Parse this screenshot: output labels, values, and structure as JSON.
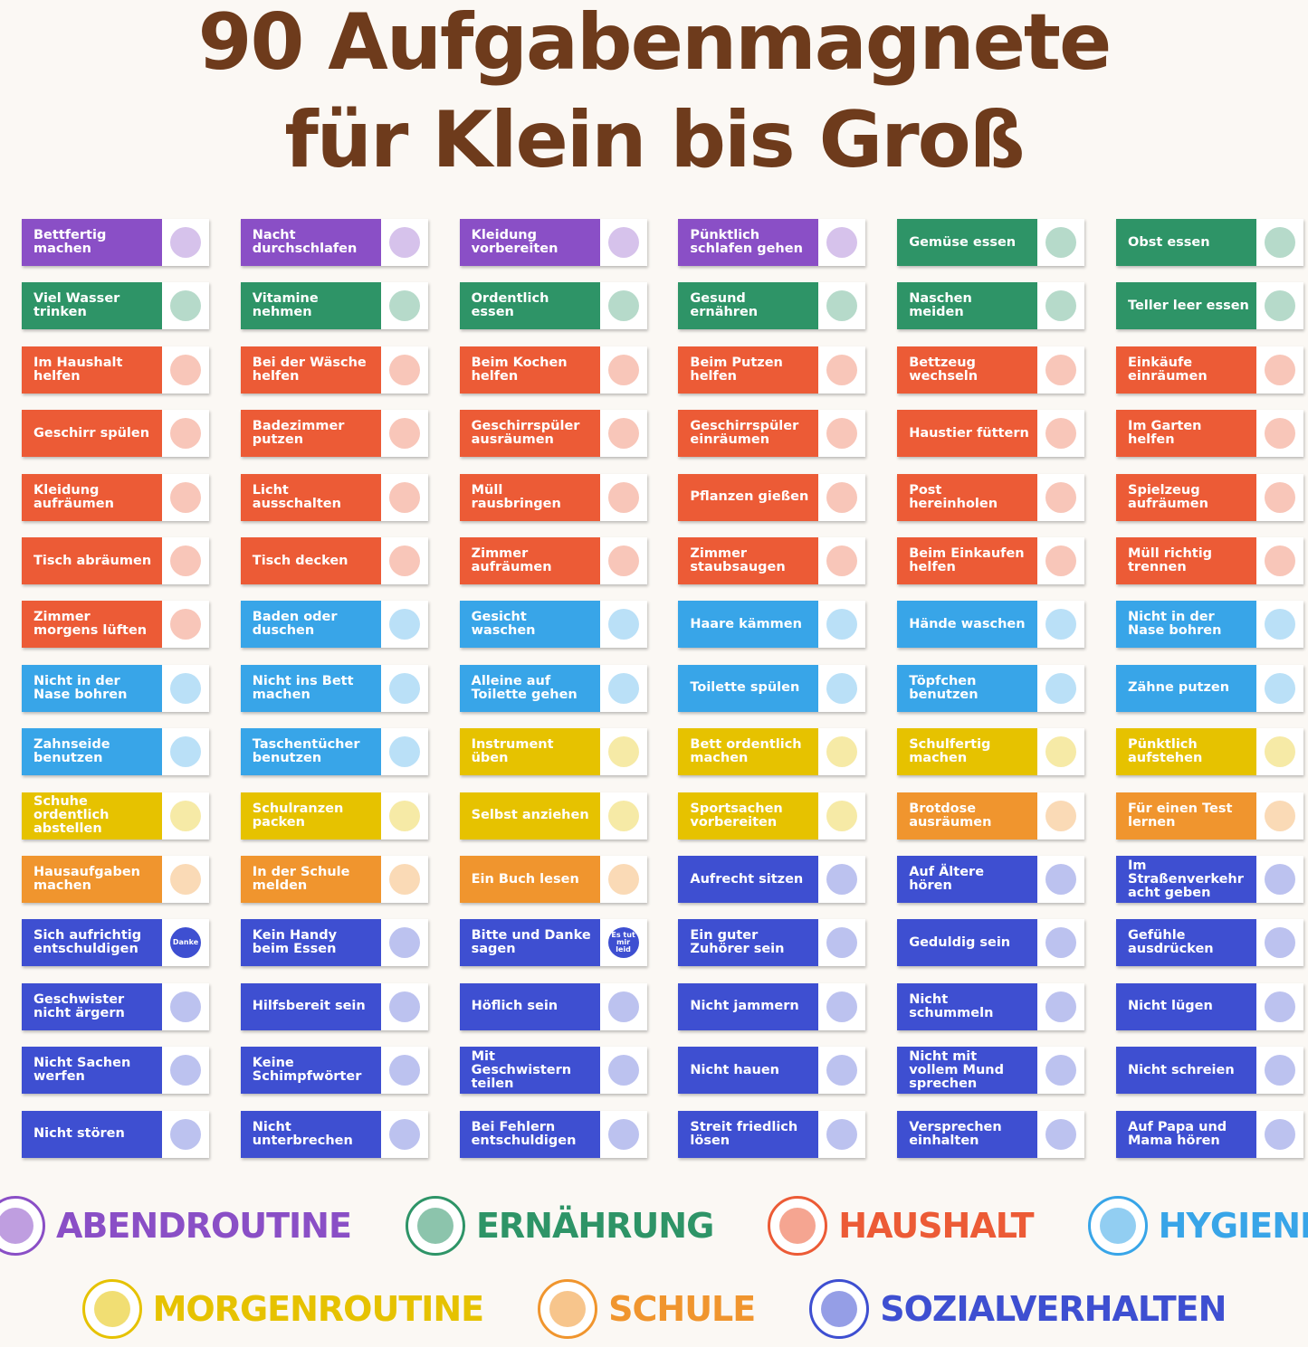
{
  "header": {
    "title_line1": "90 Aufgabenmagnete",
    "title_line2": "für Klein bis Groß"
  },
  "categories": [
    {
      "name": "ABENDROUTINE",
      "color": "#8a4fc6"
    },
    {
      "name": "ERNÄHRUNG",
      "color": "#2e9467"
    },
    {
      "name": "HAUSHALT",
      "color": "#ec5b36"
    },
    {
      "name": "HYGIENE",
      "color": "#38a5e8"
    },
    {
      "name": "MORGENROUTINE",
      "color": "#e6c200"
    },
    {
      "name": "SCHULE",
      "color": "#f0952e"
    },
    {
      "name": "SOZIALVERHALTEN",
      "color": "#3e4fd1"
    }
  ],
  "magnets": [
    {
      "label": "Bettfertig machen",
      "cat": 0
    },
    {
      "label": "Nacht durchschlafen",
      "cat": 0
    },
    {
      "label": "Kleidung vorbereiten",
      "cat": 0
    },
    {
      "label": "Pünktlich schlafen gehen",
      "cat": 0
    },
    {
      "label": "Gemüse essen",
      "cat": 1
    },
    {
      "label": "Obst essen",
      "cat": 1
    },
    {
      "label": "Viel Wasser trinken",
      "cat": 1
    },
    {
      "label": "Vitamine nehmen",
      "cat": 1
    },
    {
      "label": "Ordentlich essen",
      "cat": 1
    },
    {
      "label": "Gesund ernähren",
      "cat": 1
    },
    {
      "label": "Naschen meiden",
      "cat": 1
    },
    {
      "label": "Teller leer essen",
      "cat": 1
    },
    {
      "label": "Im Haushalt helfen",
      "cat": 2
    },
    {
      "label": "Bei der Wäsche helfen",
      "cat": 2
    },
    {
      "label": "Beim Kochen helfen",
      "cat": 2
    },
    {
      "label": "Beim Putzen helfen",
      "cat": 2
    },
    {
      "label": "Bettzeug wechseln",
      "cat": 2
    },
    {
      "label": "Einkäufe einräumen",
      "cat": 2
    },
    {
      "label": "Geschirr spülen",
      "cat": 2
    },
    {
      "label": "Badezimmer putzen",
      "cat": 2
    },
    {
      "label": "Geschirrspüler ausräumen",
      "cat": 2
    },
    {
      "label": "Geschirrspüler einräumen",
      "cat": 2
    },
    {
      "label": "Haustier füttern",
      "cat": 2
    },
    {
      "label": "Im Garten helfen",
      "cat": 2
    },
    {
      "label": "Kleidung aufräumen",
      "cat": 2
    },
    {
      "label": "Licht ausschalten",
      "cat": 2
    },
    {
      "label": "Müll rausbringen",
      "cat": 2
    },
    {
      "label": "Pflanzen gießen",
      "cat": 2
    },
    {
      "label": "Post hereinholen",
      "cat": 2
    },
    {
      "label": "Spielzeug aufräumen",
      "cat": 2
    },
    {
      "label": "Tisch abräumen",
      "cat": 2
    },
    {
      "label": "Tisch decken",
      "cat": 2
    },
    {
      "label": "Zimmer aufräumen",
      "cat": 2
    },
    {
      "label": "Zimmer staubsaugen",
      "cat": 2
    },
    {
      "label": "Beim Einkaufen helfen",
      "cat": 2
    },
    {
      "label": "Müll richtig trennen",
      "cat": 2
    },
    {
      "label": "Zimmer morgens lüften",
      "cat": 2
    },
    {
      "label": "Baden oder duschen",
      "cat": 3
    },
    {
      "label": "Gesicht waschen",
      "cat": 3
    },
    {
      "label": "Haare kämmen",
      "cat": 3
    },
    {
      "label": "Hände waschen",
      "cat": 3
    },
    {
      "label": "Nicht in der Nase bohren",
      "cat": 3
    },
    {
      "label": "Nicht in der Nase bohren",
      "cat": 3
    },
    {
      "label": "Nicht ins Bett machen",
      "cat": 3
    },
    {
      "label": "Alleine auf Toilette gehen",
      "cat": 3
    },
    {
      "label": "Toilette spülen",
      "cat": 3
    },
    {
      "label": "Töpfchen benutzen",
      "cat": 3
    },
    {
      "label": "Zähne putzen",
      "cat": 3
    },
    {
      "label": "Zahnseide benutzen",
      "cat": 3
    },
    {
      "label": "Taschentücher benutzen",
      "cat": 3
    },
    {
      "label": "Instrument üben",
      "cat": 4
    },
    {
      "label": "Bett ordentlich machen",
      "cat": 4
    },
    {
      "label": "Schulfertig machen",
      "cat": 4
    },
    {
      "label": "Pünktlich aufstehen",
      "cat": 4
    },
    {
      "label": "Schuhe ordentlich abstellen",
      "cat": 4
    },
    {
      "label": "Schulranzen packen",
      "cat": 4
    },
    {
      "label": "Selbst anziehen",
      "cat": 4
    },
    {
      "label": "Sportsachen vorbereiten",
      "cat": 4
    },
    {
      "label": "Brotdose ausräumen",
      "cat": 5
    },
    {
      "label": "Für einen Test lernen",
      "cat": 5
    },
    {
      "label": "Hausaufgaben machen",
      "cat": 5
    },
    {
      "label": "In der Schule melden",
      "cat": 5
    },
    {
      "label": "Ein Buch lesen",
      "cat": 5
    },
    {
      "label": "Aufrecht sitzen",
      "cat": 6
    },
    {
      "label": "Auf Ältere hören",
      "cat": 6
    },
    {
      "label": "Im Straßenverkehr acht geben",
      "cat": 6
    },
    {
      "label": "Sich aufrichtig entschuldigen",
      "cat": 6,
      "icon_text": "Danke"
    },
    {
      "label": "Kein Handy beim Essen",
      "cat": 6
    },
    {
      "label": "Bitte und Danke sagen",
      "cat": 6,
      "icon_text": "Es tut mir leid"
    },
    {
      "label": "Ein guter Zuhörer sein",
      "cat": 6
    },
    {
      "label": "Geduldig sein",
      "cat": 6
    },
    {
      "label": "Gefühle ausdrücken",
      "cat": 6
    },
    {
      "label": "Geschwister nicht ärgern",
      "cat": 6
    },
    {
      "label": "Hilfsbereit sein",
      "cat": 6
    },
    {
      "label": "Höflich sein",
      "cat": 6
    },
    {
      "label": "Nicht jammern",
      "cat": 6
    },
    {
      "label": "Nicht schummeln",
      "cat": 6
    },
    {
      "label": "Nicht lügen",
      "cat": 6
    },
    {
      "label": "Nicht Sachen werfen",
      "cat": 6
    },
    {
      "label": "Keine Schimpfwörter",
      "cat": 6
    },
    {
      "label": "Mit Geschwistern teilen",
      "cat": 6
    },
    {
      "label": "Nicht hauen",
      "cat": 6
    },
    {
      "label": "Nicht mit vollem Mund sprechen",
      "cat": 6
    },
    {
      "label": "Nicht schreien",
      "cat": 6
    },
    {
      "label": "Nicht stören",
      "cat": 6
    },
    {
      "label": "Nicht unterbrechen",
      "cat": 6
    },
    {
      "label": "Bei Fehlern entschuldigen",
      "cat": 6
    },
    {
      "label": "Streit friedlich lösen",
      "cat": 6
    },
    {
      "label": "Versprechen einhalten",
      "cat": 6
    },
    {
      "label": "Auf Papa und Mama hören",
      "cat": 6
    }
  ]
}
